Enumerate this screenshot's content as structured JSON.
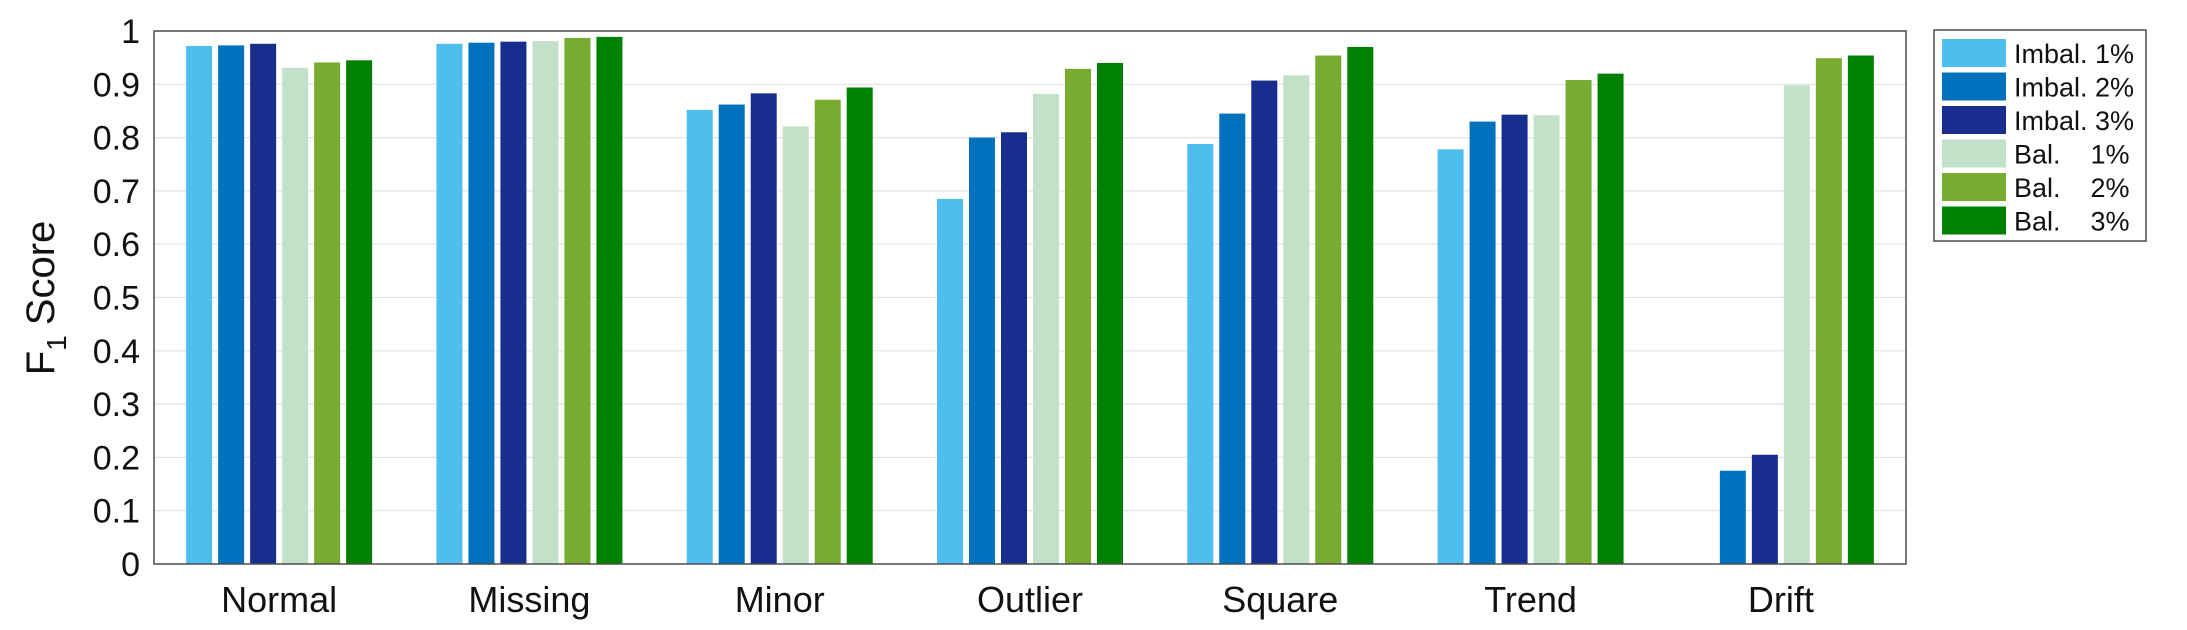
{
  "chart_data": {
    "type": "bar",
    "ylabel": "F",
    "ylabel_subscript": "1",
    "ylabel_suffix": "Score",
    "ylim": [
      0,
      1
    ],
    "yticks": [
      "0",
      "0.1",
      "0.2",
      "0.3",
      "0.4",
      "0.5",
      "0.6",
      "0.7",
      "0.8",
      "0.9",
      "1"
    ],
    "grid": "horizontal",
    "legend_position": "outside-top-right",
    "categories": [
      "Normal",
      "Missing",
      "Minor",
      "Outlier",
      "Square",
      "Trend",
      "Drift"
    ],
    "series": [
      {
        "name": "Imbal. 1%",
        "color": "#4DBEEE",
        "values": [
          0.972,
          0.976,
          0.852,
          0.685,
          0.788,
          0.778,
          null
        ]
      },
      {
        "name": "Imbal. 2%",
        "color": "#0072BD",
        "values": [
          0.973,
          0.978,
          0.862,
          0.8,
          0.845,
          0.83,
          0.175
        ]
      },
      {
        "name": "Imbal. 3%",
        "color": "#182E8E",
        "values": [
          0.976,
          0.98,
          0.883,
          0.81,
          0.907,
          0.843,
          0.205
        ]
      },
      {
        "name": "Bal.    1%",
        "color": "#C3E0C8",
        "values": [
          0.931,
          0.981,
          0.821,
          0.882,
          0.917,
          0.842,
          0.898
        ]
      },
      {
        "name": "Bal.    2%",
        "color": "#77AC30",
        "values": [
          0.941,
          0.987,
          0.871,
          0.929,
          0.954,
          0.908,
          0.949
        ]
      },
      {
        "name": "Bal.    3%",
        "color": "#008000",
        "values": [
          0.945,
          0.989,
          0.894,
          0.94,
          0.97,
          0.92,
          0.954
        ]
      }
    ]
  }
}
